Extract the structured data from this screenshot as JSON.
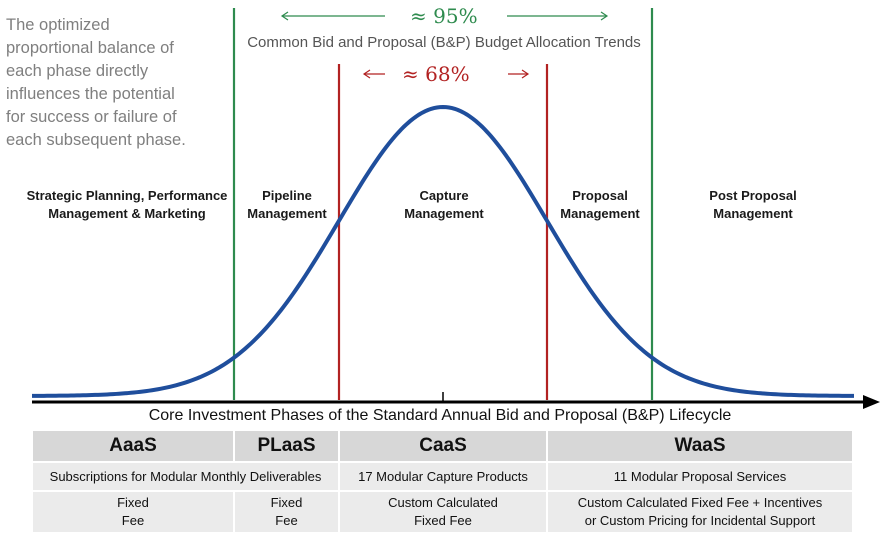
{
  "intro_lines": [
    "The optimized",
    "proportional balance of",
    "each phase directly",
    "influences the potential",
    "for success or failure of",
    "each subsequent phase."
  ],
  "outer_band": {
    "label": "≈ 95%",
    "color": "#2e8b4e"
  },
  "inner_band": {
    "label": "≈ 68%",
    "color": "#b22222"
  },
  "subtitle": "Common Bid and Proposal (B&P) Budget Allocation Trends",
  "phases": [
    {
      "line1": "Strategic Planning, Performance",
      "line2": "Management & Marketing"
    },
    {
      "line1": "Pipeline",
      "line2": "Management"
    },
    {
      "line1": "Capture",
      "line2": "Management"
    },
    {
      "line1": "Proposal",
      "line2": "Management"
    },
    {
      "line1": "Post Proposal",
      "line2": "Management"
    }
  ],
  "axis_label": "Core Investment Phases of the Standard Annual Bid and Proposal (B&P) Lifecycle",
  "curve_color": "#1f4e9c",
  "table": {
    "headers": [
      "AaaS",
      "PLaaS",
      "CaaS",
      "WaaS"
    ],
    "descriptions": {
      "subscriptions": "Subscriptions for Modular Monthly Deliverables",
      "capture": "17 Modular Capture Products",
      "proposal": "11 Modular Proposal Services"
    },
    "pricing": {
      "aaas": [
        "Fixed",
        "Fee"
      ],
      "plaas": [
        "Fixed",
        "Fee"
      ],
      "caas": [
        "Custom Calculated",
        "Fixed Fee"
      ],
      "waas": [
        "Custom Calculated Fixed Fee + Incentives",
        "or Custom Pricing for Incidental Support"
      ]
    }
  }
}
